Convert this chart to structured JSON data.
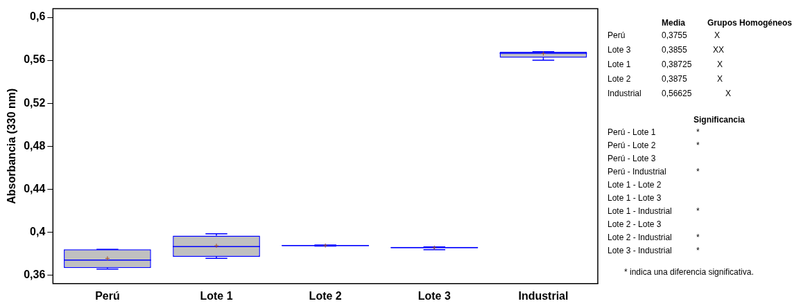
{
  "chart_data": {
    "type": "box",
    "ylabel": "Absorbancia (330 nm)",
    "categories": [
      "Perú",
      "Lote 1",
      "Lote 2",
      "Lote 3",
      "Industrial"
    ],
    "series": [
      {
        "color": "#0000ff",
        "boxes": [
          {
            "low": 0.3655,
            "q1": 0.3665,
            "median": 0.374,
            "q3": 0.384,
            "high": 0.384,
            "mean": 0.3755
          },
          {
            "low": 0.3755,
            "q1": 0.377,
            "median": 0.3865,
            "q3": 0.3966,
            "high": 0.3985,
            "mean": 0.38725
          },
          {
            "low": 0.387,
            "q1": 0.387,
            "median": 0.3875,
            "q3": 0.388,
            "high": 0.388,
            "mean": 0.3875
          },
          {
            "low": 0.3836,
            "q1": 0.385,
            "median": 0.3855,
            "q3": 0.3862,
            "high": 0.3862,
            "mean": 0.3855
          },
          {
            "low": 0.56,
            "q1": 0.5625,
            "median": 0.5665,
            "q3": 0.568,
            "high": 0.568,
            "mean": 0.56625
          }
        ]
      }
    ],
    "ylim": [
      0.352,
      0.608
    ],
    "yticks": [
      {
        "value": 0.36,
        "label": "0,36"
      },
      {
        "value": 0.4,
        "label": "0,4"
      },
      {
        "value": 0.44,
        "label": "0,44"
      },
      {
        "value": 0.48,
        "label": "0,48"
      },
      {
        "value": 0.52,
        "label": "0,52"
      },
      {
        "value": 0.56,
        "label": "0,56"
      },
      {
        "value": 0.6,
        "label": "0,6"
      }
    ],
    "grid": false,
    "annotations": [
      "Media",
      "Grupos Homogéneos",
      "Perú",
      "0,3755",
      "X",
      "Lote 3",
      "0,3855",
      "XX",
      "Lote 1",
      "0,38725",
      "X",
      "Lote 2",
      "0,3875",
      "X",
      "Industrial",
      "0,56625",
      "X",
      "Significancia",
      "Perú - Lote 1",
      "*",
      "Perú - Lote 2",
      "*",
      "Perú - Lote 3",
      "Perú - Industrial",
      "*",
      "Lote 1 - Lote 2",
      "Lote 1 - Lote 3",
      "Lote 1 - Industrial",
      "*",
      "Lote 2 - Lote 3",
      "Lote 2 - Industrial",
      "*",
      "Lote 3 - Industrial",
      "*",
      "* indica una diferencia significativa."
    ]
  }
}
